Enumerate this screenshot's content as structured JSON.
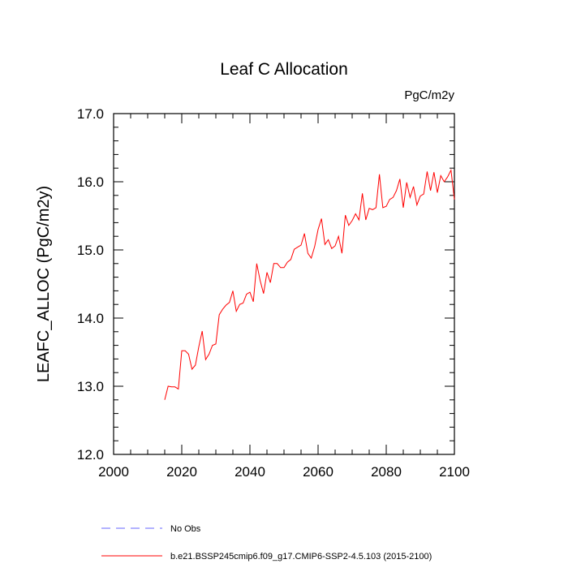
{
  "chart_data": {
    "type": "line",
    "title": "Leaf C Allocation",
    "units": "PgC/m2y",
    "xlabel": "",
    "ylabel": "LEAFC_ALLOC  (PgC/m2y)",
    "xlim": [
      2000,
      2100
    ],
    "ylim": [
      12.0,
      17.0
    ],
    "xticks": [
      2000,
      2020,
      2040,
      2060,
      2080,
      2100
    ],
    "xtick_labels": [
      "2000",
      "2020",
      "2040",
      "2060",
      "2080",
      "2100"
    ],
    "yticks": [
      12.0,
      13.0,
      14.0,
      15.0,
      16.0,
      17.0
    ],
    "ytick_labels": [
      "12.0",
      "13.0",
      "14.0",
      "15.0",
      "16.0",
      "17.0"
    ],
    "grid": false,
    "legend_position": "bottom",
    "series": [
      {
        "name": "b.e21.BSSP245cmip6.f09_g17.CMIP6-SSP2-4.5.103 (2015-2100)",
        "color": "#ff0000",
        "style": "solid",
        "x": [
          2015,
          2016,
          2017,
          2018,
          2019,
          2020,
          2021,
          2022,
          2023,
          2024,
          2025,
          2026,
          2027,
          2028,
          2029,
          2030,
          2031,
          2032,
          2033,
          2034,
          2035,
          2036,
          2037,
          2038,
          2039,
          2040,
          2041,
          2042,
          2043,
          2044,
          2045,
          2046,
          2047,
          2048,
          2049,
          2050,
          2051,
          2052,
          2053,
          2054,
          2055,
          2056,
          2057,
          2058,
          2059,
          2060,
          2061,
          2062,
          2063,
          2064,
          2065,
          2066,
          2067,
          2068,
          2069,
          2070,
          2071,
          2072,
          2073,
          2074,
          2075,
          2076,
          2077,
          2078,
          2079,
          2080,
          2081,
          2082,
          2083,
          2084,
          2085,
          2086,
          2087,
          2088,
          2089,
          2090,
          2091,
          2092,
          2093,
          2094,
          2095,
          2096,
          2097,
          2098,
          2099,
          2100
        ],
        "values": [
          12.8,
          13.0,
          12.99,
          12.99,
          12.96,
          13.52,
          13.52,
          13.47,
          13.25,
          13.31,
          13.58,
          13.81,
          13.39,
          13.47,
          13.6,
          13.62,
          14.05,
          14.13,
          14.19,
          14.23,
          14.4,
          14.1,
          14.2,
          14.22,
          14.35,
          14.38,
          14.24,
          14.8,
          14.55,
          14.36,
          14.67,
          14.52,
          14.8,
          14.8,
          14.74,
          14.74,
          14.82,
          14.86,
          15.01,
          15.04,
          15.07,
          15.24,
          14.95,
          14.88,
          15.05,
          15.3,
          15.46,
          15.08,
          15.15,
          15.02,
          15.06,
          15.2,
          14.95,
          15.51,
          15.36,
          15.43,
          15.53,
          15.44,
          15.83,
          15.44,
          15.61,
          15.59,
          15.62,
          16.11,
          15.62,
          15.64,
          15.74,
          15.77,
          15.87,
          16.04,
          15.62,
          15.99,
          15.77,
          15.93,
          15.66,
          15.79,
          15.82,
          16.15,
          15.87,
          16.14,
          15.84,
          16.09,
          16.0,
          16.07,
          16.17,
          15.74
        ]
      },
      {
        "name": "No Obs",
        "color": "#6666ff",
        "style": "dashed",
        "x": [],
        "values": []
      }
    ]
  }
}
